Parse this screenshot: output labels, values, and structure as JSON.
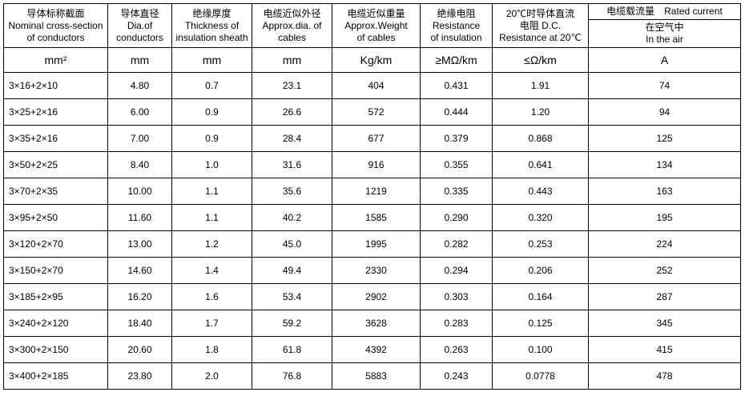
{
  "headers": {
    "col0": {
      "cn": "导体标称截面",
      "en1": "Nominal cross-section",
      "en2": "of conductors"
    },
    "col1": {
      "cn": "导体直径",
      "en1": "Dia.of",
      "en2": "conductors"
    },
    "col2": {
      "cn": "绝缘厚度",
      "en1": "Thickness of",
      "en2": "insulation sheath"
    },
    "col3": {
      "cn": "电缆近似外径",
      "en1": "Approx.dia. of",
      "en2": "cables"
    },
    "col4": {
      "cn": "电缆近似重量",
      "en1": "Approx.Weight",
      "en2": "of cables"
    },
    "col5": {
      "cn": "绝缘电阻",
      "en1": "Resistance",
      "en2": "of insulation"
    },
    "col6": {
      "cn": "20℃时导体直流",
      "en1": "电阻 D.C.",
      "en2": "Resistance at 20℃"
    },
    "col7_top": "电缆载流量　Rated current",
    "col7_sub_cn": "在空气中",
    "col7_sub_en": "In the air"
  },
  "units": {
    "u0": "mm²",
    "u1": "mm",
    "u2": "mm",
    "u3": "mm",
    "u4": "Kg/km",
    "u5": "≥MΩ/km",
    "u6": "≤Ω/km",
    "u7": "A"
  },
  "rows": [
    {
      "c0": "3×16+2×10",
      "c1": "4.80",
      "c2": "0.7",
      "c3": "23.1",
      "c4": "404",
      "c5": "0.431",
      "c6": "1.91",
      "c7": "74"
    },
    {
      "c0": "3×25+2×16",
      "c1": "6.00",
      "c2": "0.9",
      "c3": "26.6",
      "c4": "572",
      "c5": "0.444",
      "c6": "1.20",
      "c7": "94"
    },
    {
      "c0": "3×35+2×16",
      "c1": "7.00",
      "c2": "0.9",
      "c3": "28.4",
      "c4": "677",
      "c5": "0.379",
      "c6": "0.868",
      "c7": "125"
    },
    {
      "c0": "3×50+2×25",
      "c1": "8.40",
      "c2": "1.0",
      "c3": "31.6",
      "c4": "916",
      "c5": "0.355",
      "c6": "0.641",
      "c7": "134"
    },
    {
      "c0": "3×70+2×35",
      "c1": "10.00",
      "c2": "1.1",
      "c3": "35.6",
      "c4": "1219",
      "c5": "0.335",
      "c6": "0.443",
      "c7": "163"
    },
    {
      "c0": "3×95+2×50",
      "c1": "11.60",
      "c2": "1.1",
      "c3": "40.2",
      "c4": "1585",
      "c5": "0.290",
      "c6": "0.320",
      "c7": "195"
    },
    {
      "c0": "3×120+2×70",
      "c1": "13.00",
      "c2": "1.2",
      "c3": "45.0",
      "c4": "1995",
      "c5": "0.282",
      "c6": "0.253",
      "c7": "224"
    },
    {
      "c0": "3×150+2×70",
      "c1": "14.60",
      "c2": "1.4",
      "c3": "49.4",
      "c4": "2330",
      "c5": "0.294",
      "c6": "0.206",
      "c7": "252"
    },
    {
      "c0": "3×185+2×95",
      "c1": "16.20",
      "c2": "1.6",
      "c3": "53.4",
      "c4": "2902",
      "c5": "0.303",
      "c6": "0.164",
      "c7": "287"
    },
    {
      "c0": "3×240+2×120",
      "c1": "18.40",
      "c2": "1.7",
      "c3": "59.2",
      "c4": "3628",
      "c5": "0.283",
      "c6": "0.125",
      "c7": "345"
    },
    {
      "c0": "3×300+2×150",
      "c1": "20.60",
      "c2": "1.8",
      "c3": "61.8",
      "c4": "4392",
      "c5": "0.263",
      "c6": "0.100",
      "c7": "415"
    },
    {
      "c0": "3×400+2×185",
      "c1": "23.80",
      "c2": "2.0",
      "c3": "76.8",
      "c4": "5883",
      "c5": "0.243",
      "c6": "0.0778",
      "c7": "478"
    }
  ],
  "style": {
    "border_color": "#000000",
    "background": "#ffffff",
    "font_size_body": 12,
    "font_size_unit": 13
  }
}
